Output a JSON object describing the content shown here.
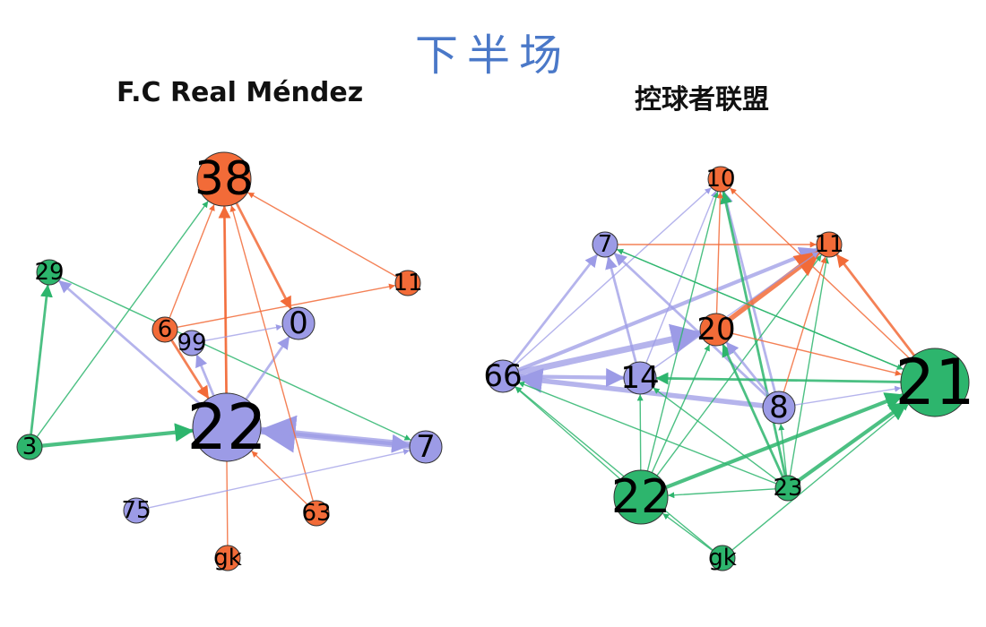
{
  "title": "下半场",
  "colors": {
    "orange": "#F26B38",
    "purple": "#9C9BE6",
    "green": "#2DB56D"
  },
  "networks": [
    {
      "name": "F.C Real Méndez",
      "nodes": [
        {
          "id": "38",
          "color": "orange",
          "size": 4
        },
        {
          "id": "11",
          "color": "orange",
          "size": 1
        },
        {
          "id": "29",
          "color": "green",
          "size": 1
        },
        {
          "id": "6",
          "color": "orange",
          "size": 1
        },
        {
          "id": "99",
          "color": "purple",
          "size": 1
        },
        {
          "id": "0",
          "color": "purple",
          "size": 2
        },
        {
          "id": "22",
          "color": "purple",
          "size": 5
        },
        {
          "id": "3",
          "color": "green",
          "size": 1
        },
        {
          "id": "7",
          "color": "purple",
          "size": 2
        },
        {
          "id": "75",
          "color": "purple",
          "size": 1
        },
        {
          "id": "63",
          "color": "orange",
          "size": 1
        },
        {
          "id": "gk",
          "color": "orange",
          "size": 1
        }
      ],
      "edges": [
        {
          "from": "3",
          "to": "22",
          "w": 3,
          "color": "green"
        },
        {
          "from": "3",
          "to": "29",
          "w": 2,
          "color": "green"
        },
        {
          "from": "3",
          "to": "38",
          "w": 1,
          "color": "green"
        },
        {
          "from": "29",
          "to": "7",
          "w": 1,
          "color": "green"
        },
        {
          "from": "7",
          "to": "22",
          "w": 6,
          "color": "purple"
        },
        {
          "from": "22",
          "to": "7",
          "w": 3,
          "color": "purple"
        },
        {
          "from": "22",
          "to": "29",
          "w": 2,
          "color": "purple"
        },
        {
          "from": "22",
          "to": "0",
          "w": 2,
          "color": "purple"
        },
        {
          "from": "22",
          "to": "99",
          "w": 2,
          "color": "purple"
        },
        {
          "from": "22",
          "to": "38",
          "w": 2,
          "color": "orange"
        },
        {
          "from": "6",
          "to": "22",
          "w": 2,
          "color": "orange"
        },
        {
          "from": "38",
          "to": "0",
          "w": 2,
          "color": "orange"
        },
        {
          "from": "11",
          "to": "38",
          "w": 1,
          "color": "orange"
        },
        {
          "from": "6",
          "to": "11",
          "w": 1,
          "color": "orange"
        },
        {
          "from": "6",
          "to": "38",
          "w": 1,
          "color": "orange"
        },
        {
          "from": "63",
          "to": "38",
          "w": 1,
          "color": "orange"
        },
        {
          "from": "63",
          "to": "22",
          "w": 1,
          "color": "orange"
        },
        {
          "from": "gk",
          "to": "38",
          "w": 1,
          "color": "orange"
        },
        {
          "from": "99",
          "to": "0",
          "w": 1,
          "color": "purple"
        },
        {
          "from": "75",
          "to": "7",
          "w": 1,
          "color": "purple"
        }
      ]
    },
    {
      "name": "控球者联盟",
      "nodes": [
        {
          "id": "10",
          "color": "orange",
          "size": 1
        },
        {
          "id": "7",
          "color": "purple",
          "size": 1
        },
        {
          "id": "11",
          "color": "orange",
          "size": 1
        },
        {
          "id": "20",
          "color": "orange",
          "size": 2
        },
        {
          "id": "66",
          "color": "purple",
          "size": 2
        },
        {
          "id": "14",
          "color": "purple",
          "size": 2
        },
        {
          "id": "21",
          "color": "green",
          "size": 5
        },
        {
          "id": "8",
          "color": "purple",
          "size": 2
        },
        {
          "id": "22",
          "color": "green",
          "size": 4
        },
        {
          "id": "23",
          "color": "green",
          "size": 1
        },
        {
          "id": "gk",
          "color": "green",
          "size": 1
        }
      ],
      "edges": [
        {
          "from": "66",
          "to": "20",
          "w": 5,
          "color": "purple"
        },
        {
          "from": "66",
          "to": "11",
          "w": 3,
          "color": "purple"
        },
        {
          "from": "66",
          "to": "14",
          "w": 3,
          "color": "purple"
        },
        {
          "from": "66",
          "to": "7",
          "w": 2,
          "color": "purple"
        },
        {
          "from": "8",
          "to": "66",
          "w": 4,
          "color": "purple"
        },
        {
          "from": "14",
          "to": "7",
          "w": 2,
          "color": "purple"
        },
        {
          "from": "8",
          "to": "7",
          "w": 2,
          "color": "purple"
        },
        {
          "from": "8",
          "to": "10",
          "w": 2,
          "color": "purple"
        },
        {
          "from": "66",
          "to": "10",
          "w": 1,
          "color": "purple"
        },
        {
          "from": "14",
          "to": "10",
          "w": 1,
          "color": "purple"
        },
        {
          "from": "21",
          "to": "14",
          "w": 2,
          "color": "green"
        },
        {
          "from": "21",
          "to": "7",
          "w": 1,
          "color": "green"
        },
        {
          "from": "22",
          "to": "21",
          "w": 3,
          "color": "green"
        },
        {
          "from": "23",
          "to": "21",
          "w": 3,
          "color": "green"
        },
        {
          "from": "22",
          "to": "11",
          "w": 1,
          "color": "green"
        },
        {
          "from": "22",
          "to": "20",
          "w": 1,
          "color": "green"
        },
        {
          "from": "22",
          "to": "14",
          "w": 1,
          "color": "green"
        },
        {
          "from": "22",
          "to": "66",
          "w": 1,
          "color": "green"
        },
        {
          "from": "22",
          "to": "10",
          "w": 1,
          "color": "green"
        },
        {
          "from": "23",
          "to": "20",
          "w": 2,
          "color": "green"
        },
        {
          "from": "23",
          "to": "10",
          "w": 2,
          "color": "green"
        },
        {
          "from": "23",
          "to": "14",
          "w": 1,
          "color": "green"
        },
        {
          "from": "23",
          "to": "66",
          "w": 1,
          "color": "green"
        },
        {
          "from": "23",
          "to": "11",
          "w": 1,
          "color": "green"
        },
        {
          "from": "23",
          "to": "22",
          "w": 1,
          "color": "green"
        },
        {
          "from": "gk",
          "to": "22",
          "w": 1,
          "color": "green"
        },
        {
          "from": "gk",
          "to": "21",
          "w": 1,
          "color": "green"
        },
        {
          "from": "gk",
          "to": "66",
          "w": 1,
          "color": "green"
        },
        {
          "from": "20",
          "to": "11",
          "w": 4,
          "color": "orange"
        },
        {
          "from": "21",
          "to": "11",
          "w": 2,
          "color": "orange"
        },
        {
          "from": "21",
          "to": "10",
          "w": 1,
          "color": "orange"
        },
        {
          "from": "20",
          "to": "21",
          "w": 1,
          "color": "orange"
        },
        {
          "from": "8",
          "to": "11",
          "w": 1,
          "color": "orange"
        },
        {
          "from": "7",
          "to": "11",
          "w": 1,
          "color": "orange"
        },
        {
          "from": "20",
          "to": "10",
          "w": 1,
          "color": "orange"
        },
        {
          "from": "14",
          "to": "11",
          "w": 1,
          "color": "purple"
        },
        {
          "from": "8",
          "to": "21",
          "w": 1,
          "color": "purple"
        },
        {
          "from": "23",
          "to": "8",
          "w": 1,
          "color": "green"
        },
        {
          "from": "8",
          "to": "20",
          "w": 2,
          "color": "purple"
        },
        {
          "from": "7",
          "to": "21",
          "w": 1,
          "color": "green"
        }
      ]
    }
  ]
}
